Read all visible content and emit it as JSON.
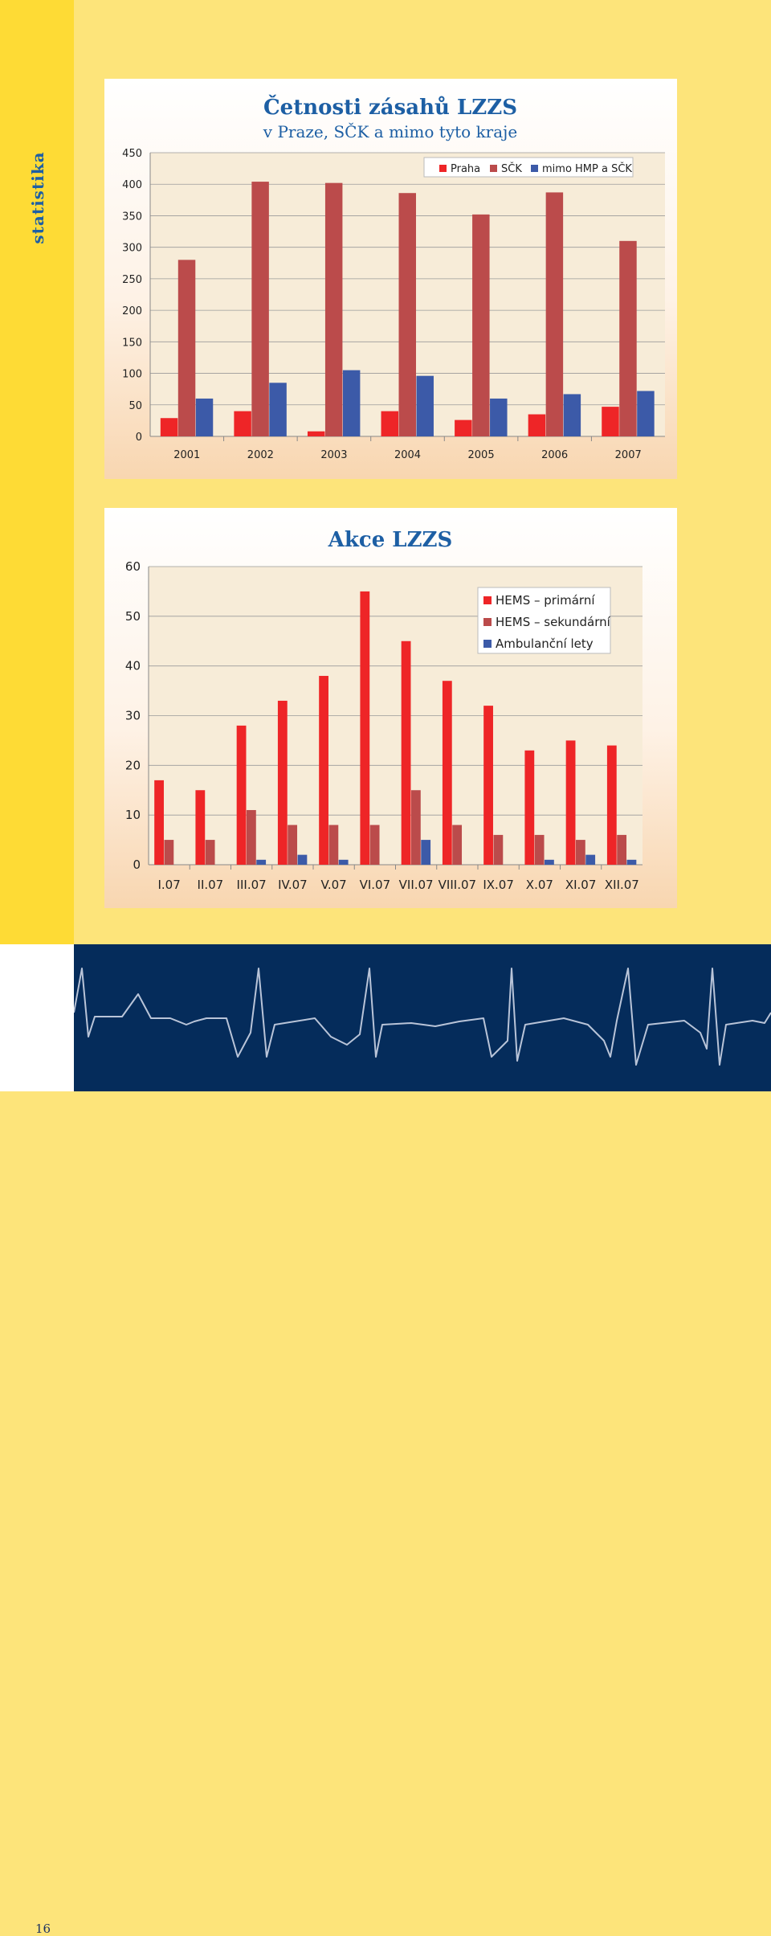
{
  "side_label": "statistika",
  "page_number": "16",
  "colors": {
    "red": "#ee2527",
    "darkred": "#bb4b4b",
    "blue": "#3c5aa8",
    "title": "#1d5fa4",
    "side_strip": "#fedb35",
    "page_bg": "#fde47a",
    "bottom_band": "#052c5b"
  },
  "chart_data": [
    {
      "type": "bar",
      "title": "Četnosti zásahů LZZS",
      "subtitle": "v Praze, SČK a mimo tyto kraje",
      "categories": [
        "2001",
        "2002",
        "2003",
        "2004",
        "2005",
        "2006",
        "2007"
      ],
      "series": [
        {
          "name": "Praha",
          "color": "#ee2527",
          "values": [
            29,
            40,
            8,
            40,
            26,
            35,
            47
          ]
        },
        {
          "name": "SČK",
          "color": "#bb4b4b",
          "values": [
            280,
            404,
            402,
            386,
            352,
            387,
            310
          ]
        },
        {
          "name": "mimo HMP a SČK",
          "color": "#3c5aa8",
          "values": [
            60,
            85,
            105,
            96,
            60,
            67,
            72
          ]
        }
      ],
      "yticks": [
        "0",
        "50",
        "100",
        "150",
        "200",
        "250",
        "300",
        "350",
        "400",
        "450"
      ],
      "ylim": [
        0,
        450
      ],
      "grid": true,
      "legend": "top-right"
    },
    {
      "type": "bar",
      "title": "Akce LZZS",
      "categories": [
        "I.07",
        "II.07",
        "III.07",
        "IV.07",
        "V.07",
        "VI.07",
        "VII.07",
        "VIII.07",
        "IX.07",
        "X.07",
        "XI.07",
        "XII.07"
      ],
      "series": [
        {
          "name": "HEMS – primární",
          "color": "#ee2527",
          "values": [
            17,
            15,
            28,
            33,
            38,
            55,
            45,
            37,
            32,
            23,
            25,
            24
          ]
        },
        {
          "name": "HEMS – sekundární",
          "color": "#bb4b4b",
          "values": [
            5,
            5,
            11,
            8,
            8,
            8,
            15,
            8,
            6,
            6,
            5,
            6
          ]
        },
        {
          "name": "Ambulanční lety",
          "color": "#3c5aa8",
          "values": [
            0,
            0,
            1,
            2,
            1,
            0,
            5,
            0,
            0,
            1,
            2,
            1
          ]
        }
      ],
      "yticks": [
        "0",
        "10",
        "20",
        "30",
        "40",
        "50",
        "60"
      ],
      "ylim": [
        0,
        60
      ],
      "grid": true,
      "legend": "top-right"
    }
  ]
}
